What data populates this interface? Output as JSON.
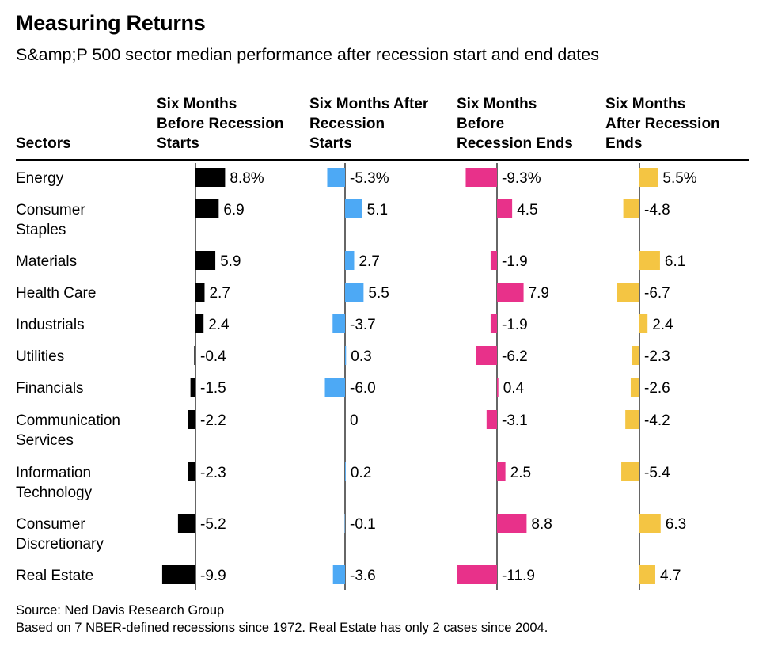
{
  "header": {
    "title": "Measuring Returns",
    "subtitle": "S&amp;P 500 sector median performance after recession start and end dates"
  },
  "footer": {
    "source": "Source: Ned Davis Research Group",
    "note": "Based on 7 NBER-defined recessions since 1972. Real Estate has only 2 cases since 2004."
  },
  "chart_data": {
    "type": "table",
    "title": "Measuring Returns",
    "subtitle": "S&amp;P 500 sector median performance after recession start and end dates",
    "row_header": "Sectors",
    "unit": "%",
    "columns": [
      {
        "label": [
          "Six Months",
          "Before Recession",
          "Starts"
        ],
        "color": "#000000"
      },
      {
        "label": [
          "Six Months After",
          "Recession",
          "Starts"
        ],
        "color": "#4da9f5"
      },
      {
        "label": [
          "Six Months",
          "Before",
          "Recession Ends"
        ],
        "color": "#e8318a"
      },
      {
        "label": [
          "Six Months",
          "After Recession",
          "Ends"
        ],
        "color": "#f4c543"
      }
    ],
    "sectors": [
      {
        "name": [
          "Energy"
        ],
        "values": [
          8.8,
          -5.3,
          -9.3,
          5.5
        ],
        "labels": [
          "8.8%",
          "-5.3%",
          "-9.3%",
          "5.5%"
        ]
      },
      {
        "name": [
          "Consumer",
          "Staples"
        ],
        "values": [
          6.9,
          5.1,
          4.5,
          -4.8
        ],
        "labels": [
          "6.9",
          "5.1",
          "4.5",
          "-4.8"
        ]
      },
      {
        "name": [
          "Materials"
        ],
        "values": [
          5.9,
          2.7,
          -1.9,
          6.1
        ],
        "labels": [
          "5.9",
          "2.7",
          "-1.9",
          "6.1"
        ]
      },
      {
        "name": [
          "Health Care"
        ],
        "values": [
          2.7,
          5.5,
          7.9,
          -6.7
        ],
        "labels": [
          "2.7",
          "5.5",
          "7.9",
          "-6.7"
        ]
      },
      {
        "name": [
          "Industrials"
        ],
        "values": [
          2.4,
          -3.7,
          -1.9,
          2.4
        ],
        "labels": [
          "2.4",
          "-3.7",
          "-1.9",
          "2.4"
        ]
      },
      {
        "name": [
          "Utilities"
        ],
        "values": [
          -0.4,
          0.3,
          -6.2,
          -2.3
        ],
        "labels": [
          "-0.4",
          "0.3",
          "-6.2",
          "-2.3"
        ]
      },
      {
        "name": [
          "Financials"
        ],
        "values": [
          -1.5,
          -6.0,
          0.4,
          -2.6
        ],
        "labels": [
          "-1.5",
          "-6.0",
          "0.4",
          "-2.6"
        ]
      },
      {
        "name": [
          "Communication",
          "Services"
        ],
        "values": [
          -2.2,
          0,
          -3.1,
          -4.2
        ],
        "labels": [
          "-2.2",
          "0",
          "-3.1",
          "-4.2"
        ]
      },
      {
        "name": [
          "Information",
          "Technology"
        ],
        "values": [
          -2.3,
          0.2,
          2.5,
          -5.4
        ],
        "labels": [
          "-2.3",
          "0.2",
          "2.5",
          "-5.4"
        ]
      },
      {
        "name": [
          "Consumer",
          "Discretionary"
        ],
        "values": [
          -5.2,
          -0.1,
          8.8,
          6.3
        ],
        "labels": [
          "-5.2",
          "-0.1",
          "8.8",
          "6.3"
        ]
      },
      {
        "name": [
          "Real Estate"
        ],
        "values": [
          -9.9,
          -3.6,
          -11.9,
          4.7
        ],
        "labels": [
          "-9.9",
          "-3.6",
          "-11.9",
          "4.7"
        ]
      }
    ]
  }
}
